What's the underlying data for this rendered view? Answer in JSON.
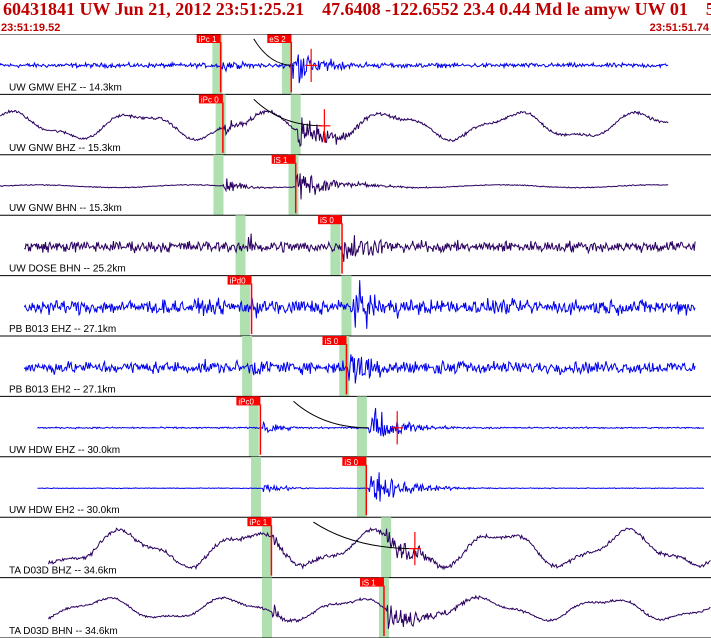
{
  "header": {
    "title": "60431841 UW Jun 21, 2012 23:51:25.21    47.6408 -122.6552 23.4 0.44 Md le amyw UW 01    5",
    "start_time": "23:51:19.52",
    "end_time": "23:51:51.74"
  },
  "colors": {
    "header_text": "#c00000",
    "trace_blue": "#0000ee",
    "trace_purple": "#2a0060",
    "pick": "#ff0000",
    "window": "#b0e0b0",
    "divider": "#000000",
    "theory_curve": "#000000"
  },
  "chart_data": {
    "type": "line",
    "x_units": "seconds",
    "xlim": [
      0,
      32.22
    ],
    "traces": [
      {
        "label": "UW GMW EHZ -- 14.3km",
        "color": "blue",
        "style": "noise",
        "start": 0.0,
        "end": 30.3,
        "amp": 0.12,
        "picks": [
          {
            "label": "iPc 1",
            "t": 10.0
          },
          {
            "label": "eS 2",
            "t": 13.2
          }
        ],
        "windows": [
          9.85,
          13.0
        ],
        "tp": 10.0,
        "ts": 13.2,
        "curve": [
          11.5,
          13.3
        ],
        "marker": 14.1
      },
      {
        "label": "UW GNW BHZ -- 15.3km",
        "color": "purple",
        "style": "wave",
        "start": 0.0,
        "end": 30.3,
        "amp": 0.3,
        "picks": [
          {
            "label": "iPc 0",
            "t": 10.1
          }
        ],
        "windows": [
          10.0,
          13.4
        ],
        "tp": 10.1,
        "ts": 13.5,
        "curve": [
          11.5,
          14.6
        ],
        "marker": 14.7
      },
      {
        "label": "UW GNW BHN -- 15.3km",
        "color": "purple",
        "style": "flat",
        "start": 0.0,
        "end": 30.3,
        "amp": 0.05,
        "picks": [
          {
            "label": "iS 1",
            "t": 13.4
          }
        ],
        "windows": [
          9.9,
          13.3
        ],
        "tp": 10.1,
        "ts": 13.4
      },
      {
        "label": "UW DOSE BHN -- 25.2km",
        "color": "purple",
        "style": "noise",
        "start": 1.1,
        "end": 31.5,
        "amp": 0.3,
        "picks": [
          {
            "label": "iS 0",
            "t": 15.5
          }
        ],
        "windows": [
          10.9,
          15.2
        ],
        "tp": 11.2,
        "ts": 15.5
      },
      {
        "label": "PB B013 EHZ -- 27.1km",
        "color": "blue",
        "style": "noise",
        "start": 1.1,
        "end": 31.5,
        "amp": 0.38,
        "picks": [
          {
            "label": "iPd0",
            "t": 11.4
          }
        ],
        "windows": [
          11.1,
          15.7
        ],
        "tp": 11.4,
        "ts": 16.0
      },
      {
        "label": "PB B013 EH2 -- 27.1km",
        "color": "blue",
        "style": "noise",
        "start": 1.1,
        "end": 31.5,
        "amp": 0.32,
        "picks": [
          {
            "label": "iS 0",
            "t": 15.7
          }
        ],
        "windows": [
          11.2,
          15.6
        ],
        "tp": 11.4,
        "ts": 15.8
      },
      {
        "label": "UW HDW EHZ -- 30.0km",
        "color": "blue",
        "style": "quiet",
        "start": 1.7,
        "end": 31.9,
        "amp": 0.04,
        "picks": [
          {
            "label": "iPc0",
            "t": 11.8
          }
        ],
        "windows": [
          11.5,
          16.4
        ],
        "tp": 11.9,
        "ts": 16.7,
        "curve": [
          13.3,
          16.7
        ],
        "marker": 18.0
      },
      {
        "label": "UW HDW EH2 -- 30.0km",
        "color": "blue",
        "style": "quiet",
        "start": 1.7,
        "end": 31.9,
        "amp": 0.02,
        "picks": [
          {
            "label": "iS 0",
            "t": 16.6
          }
        ],
        "windows": [
          11.6,
          16.4
        ],
        "tp": 11.9,
        "ts": 16.7
      },
      {
        "label": "TA D03D BHZ -- 34.6km",
        "color": "purple",
        "style": "wave",
        "start": 2.2,
        "end": 32.2,
        "amp": 0.4,
        "picks": [
          {
            "label": "iPc 1",
            "t": 12.3
          }
        ],
        "windows": [
          12.1,
          17.5
        ],
        "tp": 12.3,
        "ts": 17.5,
        "curve": [
          14.2,
          18.8
        ],
        "marker": 18.8
      },
      {
        "label": "TA D03D BHN -- 34.6km",
        "color": "purple",
        "style": "wave",
        "start": 2.2,
        "end": 32.2,
        "amp": 0.25,
        "picks": [
          {
            "label": "iS 1",
            "t": 17.4
          }
        ],
        "windows": [
          12.1,
          17.4
        ],
        "tp": 12.3,
        "ts": 17.5
      }
    ]
  }
}
